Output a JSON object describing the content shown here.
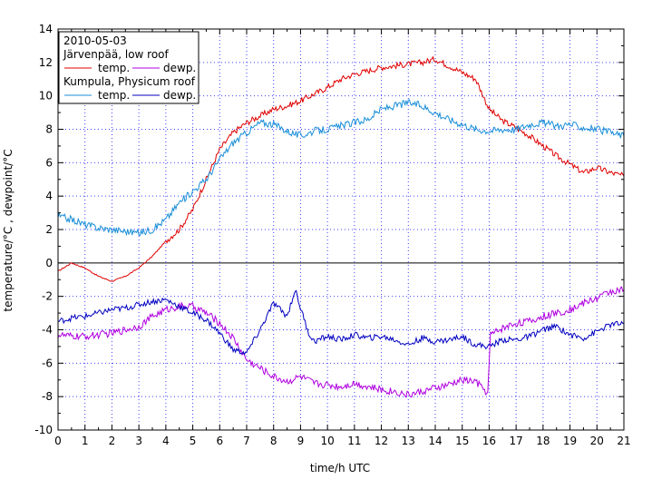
{
  "chart_data": {
    "type": "line",
    "xlabel": "time/h UTC",
    "ylabel": "temperature/°C , dewpoint/°C",
    "xlim": [
      0,
      21
    ],
    "ylim": [
      -10,
      14
    ],
    "x_ticks": [
      0,
      1,
      2,
      3,
      4,
      5,
      6,
      7,
      8,
      9,
      10,
      11,
      12,
      13,
      14,
      15,
      16,
      17,
      18,
      19,
      20,
      21
    ],
    "y_ticks": [
      -10,
      -8,
      -6,
      -4,
      -2,
      0,
      2,
      4,
      6,
      8,
      10,
      12,
      14
    ],
    "grid": true,
    "legend": {
      "placement": "top-left",
      "title": "2010-05-03",
      "group1": "Järvenpää, low roof",
      "group2": "Kumpula, Physicum roof",
      "temp_label": "temp.",
      "dewp_label": "dewp."
    },
    "series": [
      {
        "key": "jtemp",
        "color": "#e00000",
        "x": [
          0,
          0.5,
          1,
          1.5,
          2,
          2.5,
          3,
          3.5,
          4,
          4.5,
          5,
          5.5,
          6,
          6.5,
          7,
          7.5,
          8,
          8.5,
          9,
          9.5,
          10,
          10.5,
          11,
          11.5,
          12,
          12.5,
          13,
          13.5,
          14,
          14.5,
          15,
          15.5,
          16,
          16.5,
          17,
          17.5,
          18,
          18.5,
          19,
          19.5,
          20,
          20.5,
          21
        ],
        "y": [
          -0.5,
          0,
          -0.3,
          -0.8,
          -1.1,
          -0.8,
          -0.3,
          0.4,
          1.3,
          2,
          3.2,
          5,
          6.8,
          7.8,
          8.4,
          8.8,
          9.2,
          9.4,
          9.7,
          10.1,
          10.5,
          11,
          11.3,
          11.5,
          11.7,
          11.8,
          11.9,
          12,
          12.2,
          11.8,
          11.4,
          11,
          9.2,
          8.5,
          8.1,
          7.6,
          7,
          6.4,
          5.9,
          5.4,
          5.7,
          5.4,
          5.2
        ]
      },
      {
        "key": "jdewp",
        "color": "#b000e0",
        "x": [
          0,
          0.5,
          1,
          1.5,
          2,
          2.5,
          3,
          3.5,
          4,
          4.5,
          5,
          5.5,
          6,
          6.5,
          7,
          7.5,
          8,
          8.5,
          9,
          9.5,
          10,
          10.5,
          11,
          11.5,
          12,
          12.5,
          13,
          13.5,
          14,
          14.5,
          15,
          15.5,
          15.95,
          16.05,
          16.5,
          17,
          17.5,
          18,
          18.5,
          19,
          19.5,
          20,
          20.5,
          21
        ],
        "y": [
          -4.3,
          -4.4,
          -4.4,
          -4.3,
          -4.2,
          -4,
          -3.8,
          -3.2,
          -2.8,
          -2.6,
          -2.6,
          -3,
          -3.6,
          -4.5,
          -5.8,
          -6.3,
          -6.8,
          -7.1,
          -6.8,
          -7.2,
          -7.3,
          -7.4,
          -7.2,
          -7.4,
          -7.6,
          -7.7,
          -7.9,
          -7.7,
          -7.5,
          -7.3,
          -7,
          -7.1,
          -7.8,
          -4.3,
          -3.9,
          -3.6,
          -3.5,
          -3.2,
          -3,
          -2.8,
          -2.4,
          -2.1,
          -1.7,
          -1.6
        ]
      },
      {
        "key": "ktemp",
        "color": "#1a8fd8",
        "x": [
          0,
          0.5,
          1,
          1.5,
          2,
          2.5,
          3,
          3.5,
          4,
          4.5,
          5,
          5.5,
          6,
          6.5,
          7,
          7.5,
          8,
          8.5,
          9,
          9.5,
          10,
          10.5,
          11,
          11.5,
          12,
          12.5,
          13,
          13.5,
          14,
          14.5,
          15,
          15.5,
          16,
          16.5,
          17,
          17.5,
          18,
          18.5,
          19,
          19.5,
          20,
          20.5,
          21
        ],
        "y": [
          2.8,
          2.6,
          2.3,
          2.1,
          2,
          1.9,
          1.8,
          2,
          2.6,
          3.6,
          4.3,
          5,
          6.2,
          7.2,
          7.8,
          8.4,
          8.3,
          7.9,
          7.6,
          7.9,
          8,
          8.2,
          8.4,
          8.6,
          9.2,
          9.4,
          9.6,
          9.4,
          9,
          8.6,
          8.3,
          8,
          7.9,
          8,
          8,
          8.3,
          8.4,
          8.2,
          8.3,
          8.1,
          8,
          7.8,
          7.6
        ]
      },
      {
        "key": "kdewp",
        "color": "#0000c0",
        "x": [
          0,
          0.5,
          1,
          1.5,
          2,
          2.5,
          3,
          3.5,
          4,
          4.5,
          5,
          5.5,
          6,
          6.5,
          7,
          7.5,
          8,
          8.5,
          8.8,
          9,
          9.3,
          9.5,
          10,
          10.5,
          11,
          11.5,
          12,
          12.5,
          13,
          13.5,
          14,
          14.5,
          15,
          15.5,
          16,
          16.5,
          17,
          17.5,
          18,
          18.5,
          19,
          19.5,
          20,
          20.5,
          21
        ],
        "y": [
          -3.5,
          -3.3,
          -3.2,
          -3,
          -2.8,
          -2.7,
          -2.5,
          -2.3,
          -2.2,
          -2.6,
          -3,
          -3.4,
          -4.2,
          -5.2,
          -5.4,
          -4,
          -2.4,
          -3.2,
          -1.6,
          -2.7,
          -4.2,
          -4.7,
          -4.4,
          -4.6,
          -4.3,
          -4.5,
          -4.4,
          -4.6,
          -4.9,
          -4.5,
          -4.7,
          -4.6,
          -4.4,
          -4.9,
          -5,
          -4.6,
          -4.6,
          -4.4,
          -4,
          -3.8,
          -4.3,
          -4.5,
          -4.1,
          -3.7,
          -3.6
        ]
      }
    ]
  }
}
